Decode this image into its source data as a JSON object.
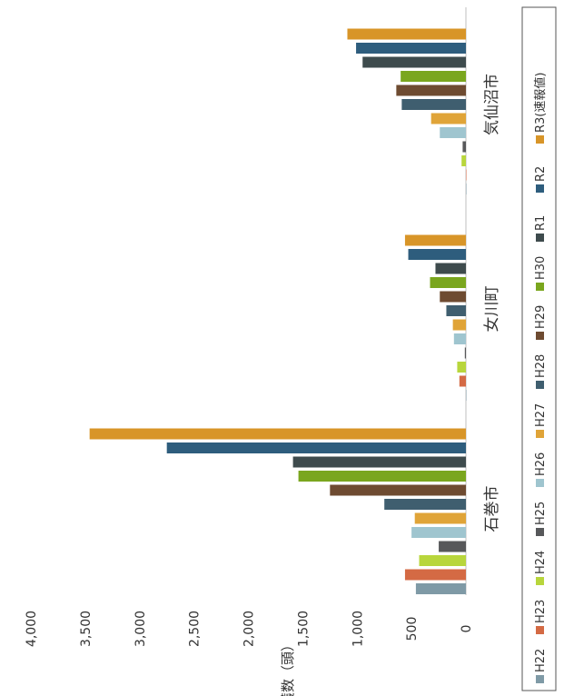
{
  "chart_data": {
    "type": "bar",
    "orientation": "horizontal",
    "ylabel": "捕獲数（頭）",
    "axis_ticks": [
      "0",
      "500",
      "1,000",
      "1,500",
      "2,000",
      "2,500",
      "3,000",
      "3,500",
      "4,000"
    ],
    "ylim": [
      0,
      4000
    ],
    "grid": false,
    "legend_position": "right",
    "categories": [
      "石巻市",
      "女川町",
      "気仙沼市"
    ],
    "series": [
      {
        "name": "H22",
        "color": "#7f9aa6",
        "values": [
          460,
          0,
          0
        ]
      },
      {
        "name": "H23",
        "color": "#d46a44",
        "values": [
          560,
          60,
          0
        ]
      },
      {
        "name": "H24",
        "color": "#b8d63c",
        "values": [
          430,
          80,
          40
        ]
      },
      {
        "name": "H25",
        "color": "#57585a",
        "values": [
          250,
          10,
          30
        ]
      },
      {
        "name": "H26",
        "color": "#9fc5cf",
        "values": [
          500,
          110,
          240
        ]
      },
      {
        "name": "H27",
        "color": "#e0a438",
        "values": [
          470,
          120,
          320
        ]
      },
      {
        "name": "H28",
        "color": "#3f5e6f",
        "values": [
          750,
          180,
          590
        ]
      },
      {
        "name": "H29",
        "color": "#6e4b31",
        "values": [
          1250,
          240,
          640
        ]
      },
      {
        "name": "H30",
        "color": "#7aa61e",
        "values": [
          1540,
          330,
          600
        ]
      },
      {
        "name": "R1",
        "color": "#3e4b4d",
        "values": [
          1590,
          280,
          950
        ]
      },
      {
        "name": "R2",
        "color": "#2e5d7d",
        "values": [
          2750,
          530,
          1010
        ]
      },
      {
        "name": "R3(速報値)",
        "color": "#d89528",
        "values": [
          3460,
          560,
          1090
        ]
      }
    ]
  }
}
